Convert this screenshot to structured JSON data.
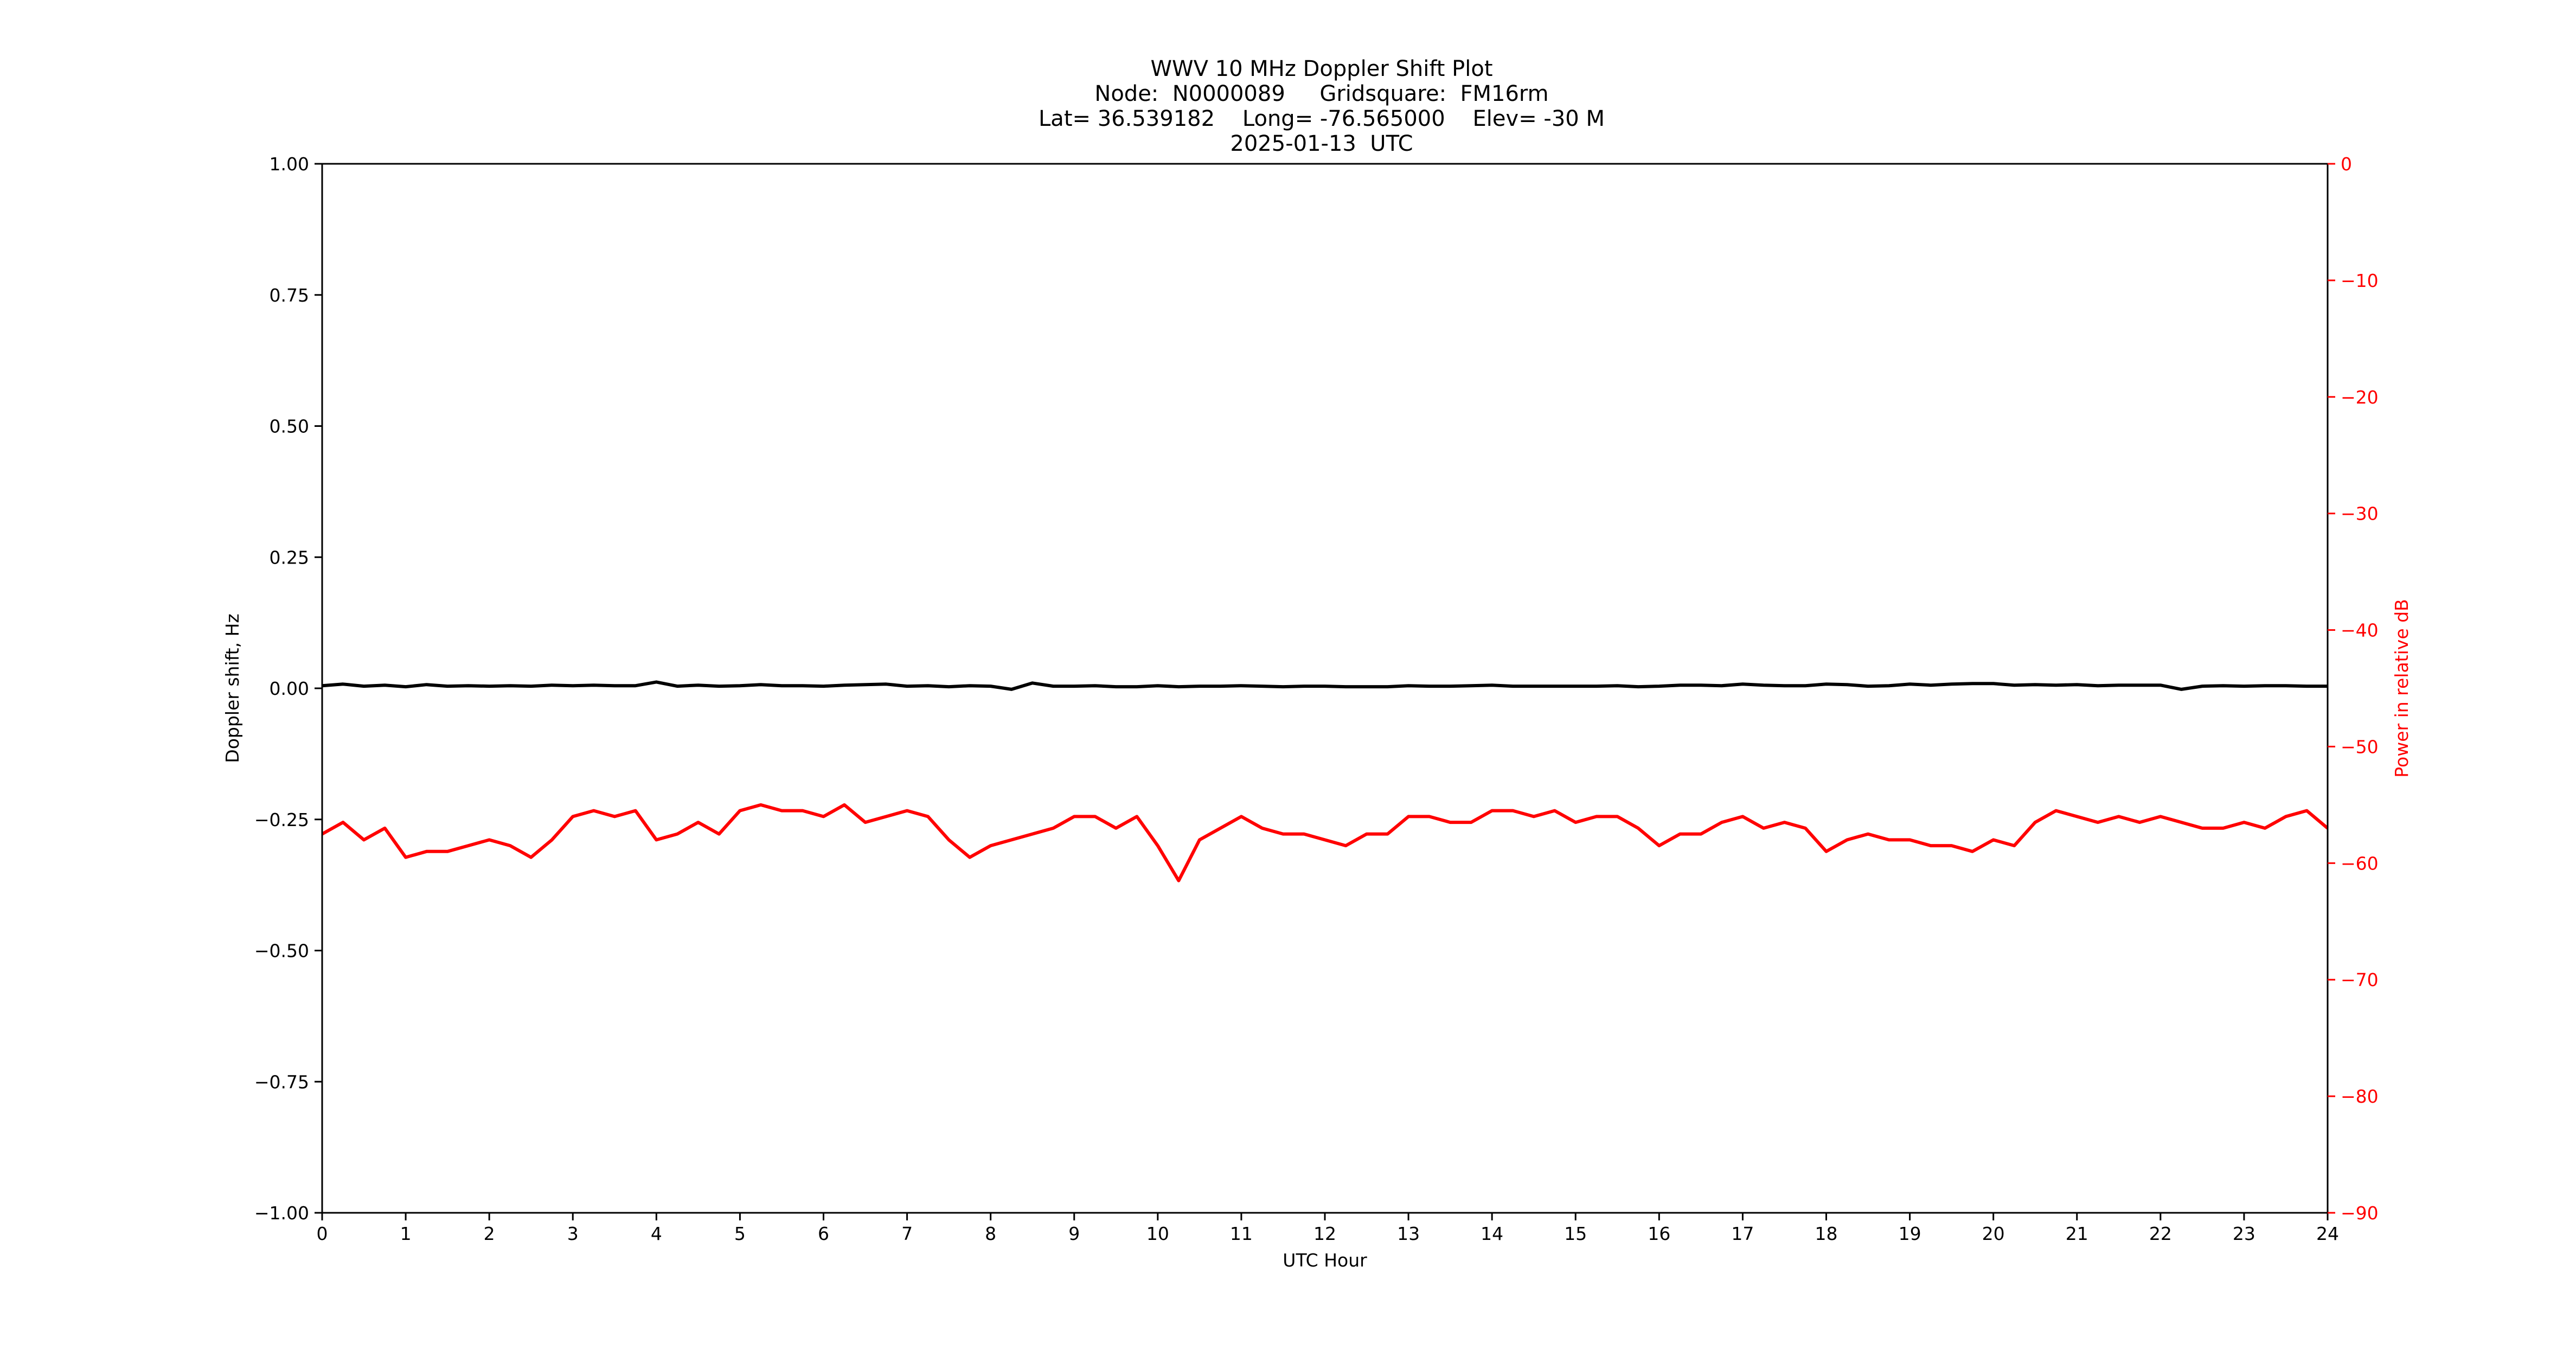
{
  "chart_data": {
    "type": "line",
    "title_lines": [
      "WWV 10 MHz Doppler Shift Plot",
      "Node:  N0000089     Gridsquare:  FM16rm",
      "Lat= 36.539182    Long= -76.565000    Elev= -30 M",
      "2025-01-13  UTC"
    ],
    "xlabel": "UTC Hour",
    "ylabel": "Doppler shift, Hz",
    "y2label": "Power in relative dB",
    "xlim": [
      0,
      24
    ],
    "ylim": [
      -1.0,
      1.0
    ],
    "y2lim": [
      -90,
      0
    ],
    "x_ticks": [
      "0",
      "1",
      "2",
      "3",
      "4",
      "5",
      "6",
      "7",
      "8",
      "9",
      "10",
      "11",
      "12",
      "13",
      "14",
      "15",
      "16",
      "17",
      "18",
      "19",
      "20",
      "21",
      "22",
      "23",
      "24"
    ],
    "y_ticks": [
      "1.00",
      "0.75",
      "0.50",
      "0.25",
      "0.00",
      "−0.25",
      "−0.50",
      "−0.75",
      "−1.00"
    ],
    "y2_ticks": [
      "0",
      "−10",
      "−20",
      "−30",
      "−40",
      "−50",
      "−60",
      "−70",
      "−80",
      "−90"
    ],
    "grid": false,
    "colors": {
      "doppler": "#000000",
      "power": "#ff0000",
      "right_axis": "#ff0000"
    },
    "series": [
      {
        "axis": "left",
        "x": [
          0,
          0.25,
          0.5,
          0.75,
          1,
          1.25,
          1.5,
          1.75,
          2,
          2.25,
          2.5,
          2.75,
          3,
          3.25,
          3.5,
          3.75,
          4,
          4.25,
          4.5,
          4.75,
          5,
          5.25,
          5.5,
          5.75,
          6,
          6.25,
          6.5,
          6.75,
          7,
          7.25,
          7.5,
          7.75,
          8,
          8.25,
          8.5,
          8.75,
          9,
          9.25,
          9.5,
          9.75,
          10,
          10.25,
          10.5,
          10.75,
          11,
          11.25,
          11.5,
          11.75,
          12,
          12.25,
          12.5,
          12.75,
          13,
          13.25,
          13.5,
          13.75,
          14,
          14.25,
          14.5,
          14.75,
          15,
          15.25,
          15.5,
          15.75,
          16,
          16.25,
          16.5,
          16.75,
          17,
          17.25,
          17.5,
          17.75,
          18,
          18.25,
          18.5,
          18.75,
          19,
          19.25,
          19.5,
          19.75,
          20,
          20.25,
          20.5,
          20.75,
          21,
          21.25,
          21.5,
          21.75,
          22,
          22.25,
          22.5,
          22.75,
          23,
          23.25,
          23.5,
          23.75,
          24
        ],
        "y": [
          0.005,
          0.008,
          0.004,
          0.006,
          0.003,
          0.007,
          0.004,
          0.005,
          0.004,
          0.005,
          0.004,
          0.006,
          0.005,
          0.006,
          0.005,
          0.005,
          0.012,
          0.004,
          0.006,
          0.004,
          0.005,
          0.007,
          0.005,
          0.005,
          0.004,
          0.006,
          0.007,
          0.008,
          0.004,
          0.005,
          0.003,
          0.005,
          0.004,
          -0.002,
          0.01,
          0.004,
          0.004,
          0.005,
          0.003,
          0.003,
          0.005,
          0.003,
          0.004,
          0.004,
          0.005,
          0.004,
          0.003,
          0.004,
          0.004,
          0.003,
          0.003,
          0.003,
          0.005,
          0.004,
          0.004,
          0.005,
          0.006,
          0.004,
          0.004,
          0.004,
          0.004,
          0.004,
          0.005,
          0.003,
          0.004,
          0.006,
          0.006,
          0.005,
          0.008,
          0.006,
          0.005,
          0.005,
          0.008,
          0.007,
          0.004,
          0.005,
          0.008,
          0.006,
          0.008,
          0.009,
          0.009,
          0.006,
          0.007,
          0.006,
          0.007,
          0.005,
          0.006,
          0.006,
          0.006,
          -0.002,
          0.004,
          0.005,
          0.004,
          0.005,
          0.005,
          0.004,
          0.004
        ]
      },
      {
        "axis": "right",
        "x": [
          0,
          0.25,
          0.5,
          0.75,
          1,
          1.25,
          1.5,
          1.75,
          2,
          2.25,
          2.5,
          2.75,
          3,
          3.25,
          3.5,
          3.75,
          4,
          4.25,
          4.5,
          4.75,
          5,
          5.25,
          5.5,
          5.75,
          6,
          6.25,
          6.5,
          6.75,
          7,
          7.25,
          7.5,
          7.75,
          8,
          8.25,
          8.5,
          8.75,
          9,
          9.25,
          9.5,
          9.75,
          10,
          10.25,
          10.5,
          10.75,
          11,
          11.25,
          11.5,
          11.75,
          12,
          12.25,
          12.5,
          12.75,
          13,
          13.25,
          13.5,
          13.75,
          14,
          14.25,
          14.5,
          14.75,
          15,
          15.25,
          15.5,
          15.75,
          16,
          16.25,
          16.5,
          16.75,
          17,
          17.25,
          17.5,
          17.75,
          18,
          18.25,
          18.5,
          18.75,
          19,
          19.25,
          19.5,
          19.75,
          20,
          20.25,
          20.5,
          20.75,
          21,
          21.25,
          21.5,
          21.75,
          22,
          22.25,
          22.5,
          22.75,
          23,
          23.25,
          23.5,
          23.75,
          24
        ],
        "y": [
          -57.5,
          -56.5,
          -58,
          -57,
          -59.5,
          -59,
          -59,
          -58.5,
          -58,
          -58.5,
          -59.5,
          -58,
          -56,
          -55.5,
          -56,
          -55.5,
          -58,
          -57.5,
          -56.5,
          -57.5,
          -55.5,
          -55,
          -55.5,
          -55.5,
          -56,
          -55,
          -56.5,
          -56,
          -55.5,
          -56,
          -58,
          -59.5,
          -58.5,
          -58,
          -57.5,
          -57,
          -56,
          -56,
          -57,
          -56,
          -58.5,
          -61.5,
          -58,
          -57,
          -56,
          -57,
          -57.5,
          -57.5,
          -58,
          -58.5,
          -57.5,
          -57.5,
          -56,
          -56,
          -56.5,
          -56.5,
          -55.5,
          -55.5,
          -56,
          -55.5,
          -56.5,
          -56,
          -56,
          -57,
          -58.5,
          -57.5,
          -57.5,
          -56.5,
          -56,
          -57,
          -56.5,
          -57,
          -59,
          -58,
          -57.5,
          -58,
          -58,
          -58.5,
          -58.5,
          -59,
          -58,
          -58.5,
          -56.5,
          -55.5,
          -56,
          -56.5,
          -56,
          -56.5,
          -56,
          -56.5,
          -57,
          -57,
          -56.5,
          -57,
          -56,
          -55.5,
          -57
        ]
      }
    ]
  }
}
